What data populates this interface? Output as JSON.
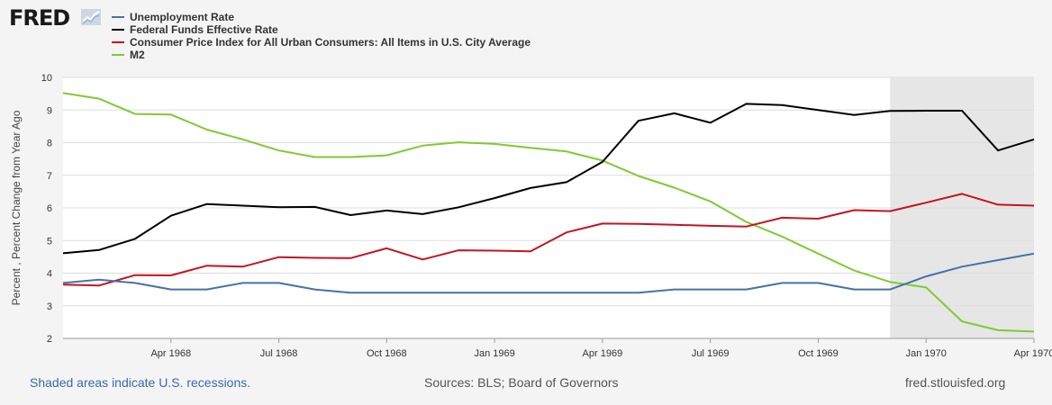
{
  "header": {
    "logo_text": "FRED",
    "logo_mark_icon": "fred-chart-line-icon"
  },
  "footer": {
    "recession_note": "Shaded areas indicate U.S. recessions.",
    "sources": "Sources: BLS; Board of Governors",
    "site": "fred.stlouisfed.org"
  },
  "colors": {
    "plot_background": "#ffffff",
    "recession_shade": "#e6e6e6",
    "gridline": "#dddddd"
  },
  "chart_data": {
    "type": "line",
    "title": "",
    "xlabel": "",
    "ylabel": "Percent , Percent Change from Year Ago",
    "ylim": [
      2,
      10
    ],
    "yticks": [
      2,
      3,
      4,
      5,
      6,
      7,
      8,
      9,
      10
    ],
    "grid": true,
    "legend_position": "top-left",
    "x": [
      "1968-01",
      "1968-02",
      "1968-03",
      "1968-04",
      "1968-05",
      "1968-06",
      "1968-07",
      "1968-08",
      "1968-09",
      "1968-10",
      "1968-11",
      "1968-12",
      "1969-01",
      "1969-02",
      "1969-03",
      "1969-04",
      "1969-05",
      "1969-06",
      "1969-07",
      "1969-08",
      "1969-09",
      "1969-10",
      "1969-11",
      "1969-12",
      "1970-01",
      "1970-02",
      "1970-03",
      "1970-04"
    ],
    "xlim": [
      "1968-01",
      "1970-04"
    ],
    "xticks": [
      {
        "date": "1968-04",
        "label": "Apr 1968"
      },
      {
        "date": "1968-07",
        "label": "Jul 1968"
      },
      {
        "date": "1968-10",
        "label": "Oct 1968"
      },
      {
        "date": "1969-01",
        "label": "Jan 1969"
      },
      {
        "date": "1969-04",
        "label": "Apr 1969"
      },
      {
        "date": "1969-07",
        "label": "Jul 1969"
      },
      {
        "date": "1969-10",
        "label": "Oct 1969"
      },
      {
        "date": "1970-01",
        "label": "Jan 1970"
      },
      {
        "date": "1970-04",
        "label": "Apr 1970"
      }
    ],
    "recessions": [
      {
        "start": "1969-12",
        "end": "1970-04"
      }
    ],
    "series": [
      {
        "name": "Unemployment Rate",
        "color": "#4572a7",
        "values": [
          3.7,
          3.8,
          3.7,
          3.5,
          3.5,
          3.7,
          3.7,
          3.5,
          3.4,
          3.4,
          3.4,
          3.4,
          3.4,
          3.4,
          3.4,
          3.4,
          3.4,
          3.5,
          3.5,
          3.5,
          3.7,
          3.7,
          3.5,
          3.5,
          3.9,
          4.2,
          4.4,
          4.6
        ]
      },
      {
        "name": "Federal Funds Effective Rate",
        "color": "#000000",
        "values": [
          4.61,
          4.71,
          5.05,
          5.76,
          6.12,
          6.07,
          6.02,
          6.03,
          5.78,
          5.92,
          5.81,
          6.02,
          6.3,
          6.61,
          6.79,
          7.41,
          8.67,
          8.9,
          8.61,
          9.19,
          9.15,
          9.0,
          8.85,
          8.97,
          8.98,
          8.98,
          7.76,
          8.1
        ]
      },
      {
        "name": "Consumer Price Index for All Urban Consumers: All Items in U.S. City Average",
        "color": "#c4141e",
        "values": [
          3.65,
          3.62,
          3.94,
          3.93,
          4.23,
          4.2,
          4.49,
          4.47,
          4.46,
          4.76,
          4.42,
          4.7,
          4.69,
          4.67,
          5.25,
          5.52,
          5.51,
          5.48,
          5.45,
          5.43,
          5.7,
          5.67,
          5.93,
          5.9,
          6.16,
          6.43,
          6.1,
          6.07
        ]
      },
      {
        "name": "M2",
        "color": "#7ecb30",
        "values": [
          9.52,
          9.35,
          8.88,
          8.86,
          8.4,
          8.1,
          7.76,
          7.56,
          7.56,
          7.61,
          7.91,
          8.01,
          7.96,
          7.84,
          7.73,
          7.45,
          6.98,
          6.62,
          6.2,
          5.57,
          5.12,
          4.6,
          4.08,
          3.73,
          3.56,
          2.52,
          2.25,
          2.21
        ]
      }
    ]
  }
}
